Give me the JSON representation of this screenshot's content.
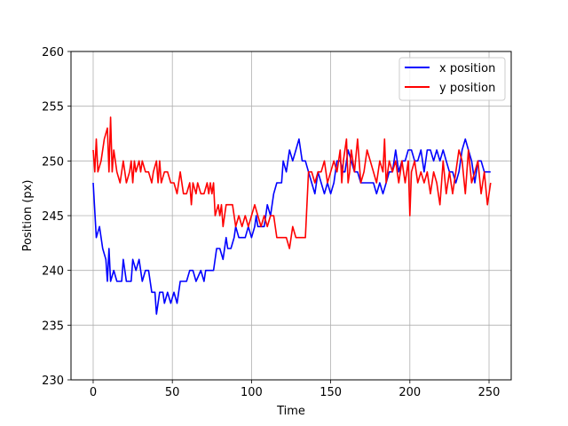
{
  "chart_data": {
    "type": "line",
    "title": "",
    "xlabel": "Time",
    "ylabel": "Position (px)",
    "xlim": [
      -14,
      264
    ],
    "ylim": [
      230,
      260
    ],
    "xticks": [
      0,
      50,
      100,
      150,
      200,
      250
    ],
    "yticks": [
      230,
      235,
      240,
      245,
      250,
      255,
      260
    ],
    "grid": true,
    "legend_position": "top-right",
    "series": [
      {
        "name": "x position",
        "color": "#0000ff",
        "points": [
          [
            0,
            248
          ],
          [
            2,
            243
          ],
          [
            4,
            244
          ],
          [
            6,
            242
          ],
          [
            8,
            241
          ],
          [
            9,
            239
          ],
          [
            10,
            242
          ],
          [
            11,
            239
          ],
          [
            13,
            240
          ],
          [
            15,
            239
          ],
          [
            18,
            239
          ],
          [
            19,
            241
          ],
          [
            21,
            239
          ],
          [
            24,
            239
          ],
          [
            25,
            241
          ],
          [
            27,
            240
          ],
          [
            29,
            241
          ],
          [
            31,
            239
          ],
          [
            33,
            240
          ],
          [
            35,
            240
          ],
          [
            37,
            238
          ],
          [
            39,
            238
          ],
          [
            40,
            236
          ],
          [
            42,
            238
          ],
          [
            44,
            238
          ],
          [
            45,
            237
          ],
          [
            47,
            238
          ],
          [
            49,
            237
          ],
          [
            51,
            238
          ],
          [
            53,
            237
          ],
          [
            55,
            239
          ],
          [
            57,
            239
          ],
          [
            59,
            239
          ],
          [
            61,
            240
          ],
          [
            63,
            240
          ],
          [
            65,
            239
          ],
          [
            68,
            240
          ],
          [
            70,
            239
          ],
          [
            71,
            240
          ],
          [
            76,
            240
          ],
          [
            78,
            242
          ],
          [
            80,
            242
          ],
          [
            82,
            241
          ],
          [
            84,
            243
          ],
          [
            85,
            242
          ],
          [
            87,
            242
          ],
          [
            89,
            243
          ],
          [
            90,
            244
          ],
          [
            92,
            243
          ],
          [
            94,
            243
          ],
          [
            96,
            243
          ],
          [
            98,
            244
          ],
          [
            100,
            243
          ],
          [
            102,
            244
          ],
          [
            103,
            245
          ],
          [
            104,
            244
          ],
          [
            106,
            244
          ],
          [
            108,
            244
          ],
          [
            110,
            246
          ],
          [
            112,
            245
          ],
          [
            114,
            247
          ],
          [
            116,
            248
          ],
          [
            119,
            248
          ],
          [
            120,
            250
          ],
          [
            122,
            249
          ],
          [
            124,
            251
          ],
          [
            126,
            250
          ],
          [
            128,
            251
          ],
          [
            130,
            252
          ],
          [
            132,
            250
          ],
          [
            134,
            250
          ],
          [
            136,
            249
          ],
          [
            138,
            248
          ],
          [
            140,
            247
          ],
          [
            142,
            249
          ],
          [
            144,
            248
          ],
          [
            146,
            247
          ],
          [
            148,
            248
          ],
          [
            150,
            247
          ],
          [
            152,
            248
          ],
          [
            154,
            250
          ],
          [
            156,
            250
          ],
          [
            158,
            249
          ],
          [
            159,
            249
          ],
          [
            161,
            251
          ],
          [
            163,
            250
          ],
          [
            165,
            249
          ],
          [
            167,
            249
          ],
          [
            169,
            248
          ],
          [
            171,
            248
          ],
          [
            173,
            248
          ],
          [
            175,
            248
          ],
          [
            177,
            248
          ],
          [
            179,
            247
          ],
          [
            181,
            248
          ],
          [
            183,
            247
          ],
          [
            185,
            248
          ],
          [
            187,
            249
          ],
          [
            189,
            249
          ],
          [
            191,
            251
          ],
          [
            193,
            249
          ],
          [
            195,
            250
          ],
          [
            197,
            250
          ],
          [
            199,
            251
          ],
          [
            201,
            251
          ],
          [
            203,
            250
          ],
          [
            205,
            250
          ],
          [
            207,
            251
          ],
          [
            209,
            249
          ],
          [
            211,
            251
          ],
          [
            213,
            251
          ],
          [
            215,
            250
          ],
          [
            217,
            251
          ],
          [
            219,
            250
          ],
          [
            221,
            251
          ],
          [
            223,
            250
          ],
          [
            225,
            249
          ],
          [
            227,
            249
          ],
          [
            229,
            248
          ],
          [
            231,
            249
          ],
          [
            233,
            251
          ],
          [
            235,
            252
          ],
          [
            237,
            251
          ],
          [
            239,
            250
          ],
          [
            241,
            248
          ],
          [
            243,
            250
          ],
          [
            245,
            250
          ],
          [
            247,
            249
          ],
          [
            249,
            249
          ],
          [
            251,
            249
          ]
        ]
      },
      {
        "name": "y position",
        "color": "#ff0000",
        "points": [
          [
            0,
            251
          ],
          [
            1,
            249
          ],
          [
            2,
            252
          ],
          [
            3,
            249
          ],
          [
            5,
            250
          ],
          [
            7,
            252
          ],
          [
            9,
            253
          ],
          [
            10,
            249
          ],
          [
            11,
            254
          ],
          [
            12,
            249
          ],
          [
            13,
            251
          ],
          [
            15,
            249
          ],
          [
            17,
            248
          ],
          [
            19,
            250
          ],
          [
            21,
            248
          ],
          [
            23,
            249
          ],
          [
            24,
            250
          ],
          [
            25,
            248
          ],
          [
            26,
            250
          ],
          [
            27,
            249
          ],
          [
            29,
            250
          ],
          [
            30,
            249
          ],
          [
            31,
            250
          ],
          [
            33,
            249
          ],
          [
            35,
            249
          ],
          [
            37,
            248
          ],
          [
            38,
            249
          ],
          [
            40,
            250
          ],
          [
            41,
            248
          ],
          [
            42,
            250
          ],
          [
            43,
            248
          ],
          [
            45,
            249
          ],
          [
            47,
            249
          ],
          [
            49,
            248
          ],
          [
            51,
            248
          ],
          [
            53,
            247
          ],
          [
            55,
            249
          ],
          [
            57,
            247
          ],
          [
            59,
            247
          ],
          [
            61,
            248
          ],
          [
            62,
            246
          ],
          [
            63,
            248
          ],
          [
            65,
            247
          ],
          [
            66,
            248
          ],
          [
            68,
            247
          ],
          [
            70,
            247
          ],
          [
            72,
            248
          ],
          [
            73,
            247
          ],
          [
            74,
            248
          ],
          [
            75,
            247
          ],
          [
            76,
            248
          ],
          [
            77,
            245
          ],
          [
            79,
            246
          ],
          [
            80,
            245
          ],
          [
            81,
            246
          ],
          [
            82,
            244
          ],
          [
            84,
            246
          ],
          [
            86,
            246
          ],
          [
            88,
            246
          ],
          [
            90,
            244
          ],
          [
            92,
            245
          ],
          [
            94,
            244
          ],
          [
            96,
            245
          ],
          [
            98,
            244
          ],
          [
            100,
            245
          ],
          [
            102,
            246
          ],
          [
            104,
            245
          ],
          [
            106,
            244
          ],
          [
            108,
            245
          ],
          [
            110,
            244
          ],
          [
            112,
            245
          ],
          [
            114,
            245
          ],
          [
            116,
            243
          ],
          [
            118,
            243
          ],
          [
            120,
            243
          ],
          [
            122,
            243
          ],
          [
            124,
            242
          ],
          [
            126,
            244
          ],
          [
            128,
            243
          ],
          [
            130,
            243
          ],
          [
            132,
            243
          ],
          [
            134,
            243
          ],
          [
            136,
            249
          ],
          [
            138,
            249
          ],
          [
            140,
            248
          ],
          [
            142,
            249
          ],
          [
            144,
            249
          ],
          [
            146,
            250
          ],
          [
            148,
            248
          ],
          [
            150,
            249
          ],
          [
            152,
            250
          ],
          [
            154,
            249
          ],
          [
            156,
            251
          ],
          [
            157,
            248
          ],
          [
            158,
            250
          ],
          [
            160,
            252
          ],
          [
            161,
            248
          ],
          [
            162,
            249
          ],
          [
            163,
            251
          ],
          [
            165,
            249
          ],
          [
            167,
            252
          ],
          [
            169,
            248
          ],
          [
            171,
            249
          ],
          [
            173,
            251
          ],
          [
            175,
            250
          ],
          [
            177,
            249
          ],
          [
            179,
            248
          ],
          [
            181,
            250
          ],
          [
            183,
            249
          ],
          [
            184,
            252
          ],
          [
            185,
            248
          ],
          [
            187,
            250
          ],
          [
            189,
            249
          ],
          [
            191,
            250
          ],
          [
            193,
            248
          ],
          [
            195,
            250
          ],
          [
            197,
            248
          ],
          [
            199,
            250
          ],
          [
            200,
            245
          ],
          [
            201,
            249
          ],
          [
            203,
            250
          ],
          [
            205,
            248
          ],
          [
            207,
            249
          ],
          [
            209,
            248
          ],
          [
            211,
            249
          ],
          [
            213,
            247
          ],
          [
            215,
            249
          ],
          [
            217,
            248
          ],
          [
            219,
            246
          ],
          [
            221,
            250
          ],
          [
            223,
            247
          ],
          [
            225,
            249
          ],
          [
            227,
            247
          ],
          [
            229,
            249
          ],
          [
            231,
            251
          ],
          [
            233,
            250
          ],
          [
            235,
            247
          ],
          [
            237,
            251
          ],
          [
            239,
            248
          ],
          [
            241,
            249
          ],
          [
            243,
            250
          ],
          [
            245,
            247
          ],
          [
            247,
            249
          ],
          [
            249,
            246
          ],
          [
            251,
            248
          ]
        ]
      }
    ]
  }
}
